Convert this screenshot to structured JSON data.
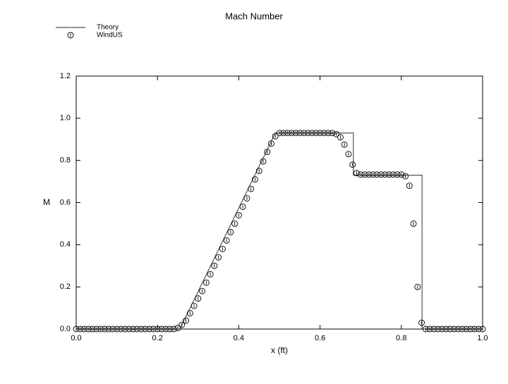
{
  "chart_data": {
    "type": "line",
    "title": "Mach Number",
    "x_label": "x (ft)",
    "y_label": "M",
    "xlim": [
      0,
      1
    ],
    "ylim": [
      0,
      1.2
    ],
    "xticks": [
      {
        "value": 0,
        "label": "0.0"
      },
      {
        "value": 0.2,
        "label": "0.2"
      },
      {
        "value": 0.4,
        "label": "0.4"
      },
      {
        "value": 0.6,
        "label": "0.6"
      },
      {
        "value": 0.8,
        "label": "0.8"
      },
      {
        "value": 1,
        "label": "1.0"
      }
    ],
    "yticks": [
      {
        "value": 0,
        "label": "0.0"
      },
      {
        "value": 0.2,
        "label": "0.2"
      },
      {
        "value": 0.4,
        "label": "0.4"
      },
      {
        "value": 0.6,
        "label": "0.6"
      },
      {
        "value": 0.8,
        "label": "0.8"
      },
      {
        "value": 1,
        "label": "1.0"
      },
      {
        "value": 1.2,
        "label": "1.2"
      }
    ],
    "grid": false,
    "legend": "top-left",
    "series": [
      {
        "name": "Theory",
        "mode": "line",
        "color": "#555555",
        "x": [
          0,
          0.255,
          0.49,
          0.682,
          0.682,
          0.851,
          0.851,
          1
        ],
        "values": [
          0,
          0,
          0.93,
          0.93,
          0.73,
          0.73,
          0,
          0
        ]
      },
      {
        "name": "WindUS",
        "mode": "markers",
        "color": "#000000",
        "x": [
          0,
          0.01,
          0.02,
          0.03,
          0.04,
          0.05,
          0.06,
          0.07,
          0.08,
          0.09,
          0.1,
          0.11,
          0.12,
          0.13,
          0.14,
          0.15,
          0.16,
          0.17,
          0.18,
          0.19,
          0.2,
          0.21,
          0.22,
          0.23,
          0.24,
          0.25,
          0.26,
          0.27,
          0.28,
          0.29,
          0.3,
          0.31,
          0.32,
          0.33,
          0.34,
          0.35,
          0.36,
          0.37,
          0.38,
          0.39,
          0.4,
          0.41,
          0.42,
          0.43,
          0.44,
          0.45,
          0.46,
          0.47,
          0.48,
          0.49,
          0.5,
          0.51,
          0.52,
          0.53,
          0.54,
          0.55,
          0.56,
          0.57,
          0.58,
          0.59,
          0.6,
          0.61,
          0.62,
          0.63,
          0.64,
          0.65,
          0.66,
          0.67,
          0.68,
          0.69,
          0.7,
          0.71,
          0.72,
          0.73,
          0.74,
          0.75,
          0.76,
          0.77,
          0.78,
          0.79,
          0.8,
          0.81,
          0.82,
          0.83,
          0.84,
          0.85,
          0.86,
          0.87,
          0.88,
          0.89,
          0.9,
          0.91,
          0.92,
          0.93,
          0.94,
          0.95,
          0.96,
          0.97,
          0.98,
          0.99,
          1
        ],
        "values": [
          0,
          0,
          0,
          0,
          0,
          0,
          0,
          0,
          0,
          0,
          0,
          0,
          0,
          0,
          0,
          0,
          0,
          0,
          0,
          0,
          0,
          0,
          0,
          0,
          0,
          0.005,
          0.02,
          0.04,
          0.075,
          0.11,
          0.145,
          0.18,
          0.22,
          0.26,
          0.3,
          0.34,
          0.38,
          0.42,
          0.46,
          0.5,
          0.54,
          0.58,
          0.62,
          0.665,
          0.71,
          0.75,
          0.795,
          0.84,
          0.88,
          0.915,
          0.93,
          0.93,
          0.93,
          0.93,
          0.93,
          0.93,
          0.93,
          0.93,
          0.93,
          0.93,
          0.93,
          0.93,
          0.93,
          0.93,
          0.925,
          0.91,
          0.875,
          0.83,
          0.78,
          0.74,
          0.733,
          0.733,
          0.733,
          0.733,
          0.733,
          0.733,
          0.733,
          0.733,
          0.733,
          0.733,
          0.733,
          0.725,
          0.68,
          0.5,
          0.2,
          0.03,
          0,
          0,
          0,
          0,
          0,
          0,
          0,
          0,
          0,
          0,
          0,
          0,
          0,
          0,
          0
        ]
      }
    ]
  }
}
